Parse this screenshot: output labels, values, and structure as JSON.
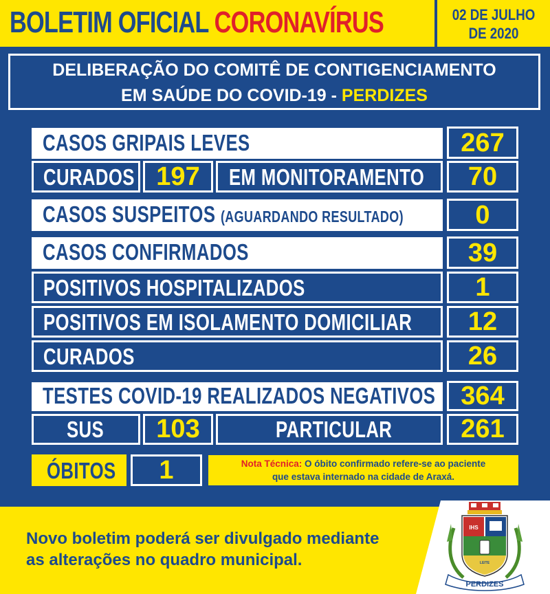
{
  "header": {
    "title_part1": "BOLETIM OFICIAL ",
    "title_part2": "CORONAVÍRUS",
    "date_line1": "02 DE JULHO",
    "date_line2": "DE 2020"
  },
  "deliberacao": {
    "line1": "DELIBERAÇÃO DO COMITÊ DE CONTIGENCIAMENTO",
    "line2": "EM SAÚDE DO COVID-19 - ",
    "city": "PERDIZES"
  },
  "gripais": {
    "label": "CASOS GRIPAIS LEVES",
    "value": "267"
  },
  "curados_gripais": {
    "label": "CURADOS",
    "value": "197",
    "monit_label": "EM MONITORAMENTO",
    "monit_value": "70"
  },
  "suspeitos": {
    "label": "CASOS SUSPEITOS",
    "sublabel": "(AGUARDANDO RESULTADO)",
    "value": "0"
  },
  "confirmados": {
    "label": "CASOS CONFIRMADOS",
    "value": "39"
  },
  "hospitalizados": {
    "label": "POSITIVOS HOSPITALIZADOS",
    "value": "1"
  },
  "isolamento": {
    "label": "POSITIVOS EM ISOLAMENTO DOMICILIAR",
    "value": "12"
  },
  "curados": {
    "label": "CURADOS",
    "value": "26"
  },
  "testes": {
    "label": "TESTES COVID-19 REALIZADOS NEGATIVOS",
    "value": "364"
  },
  "sus": {
    "label": "SUS",
    "value": "103",
    "part_label": "PARTICULAR",
    "part_value": "261"
  },
  "obitos": {
    "label": "ÓBITOS",
    "value": "1"
  },
  "nota": {
    "prefix": "Nota Técnica:",
    "text1": " O óbito confirmado refere-se ao paciente",
    "text2": "que estava internado na cidade de Araxá."
  },
  "footer": {
    "line1": "Novo boletim poderá ser divulgado mediante",
    "line2": "as alterações no quadro municipal."
  },
  "seal": {
    "banner": "PERDIZES",
    "shield_text": "IHS",
    "milk_text": "LEITE"
  },
  "colors": {
    "blue": "#1d4a8c",
    "yellow": "#ffe600",
    "red": "#e0202a",
    "white": "#ffffff"
  }
}
